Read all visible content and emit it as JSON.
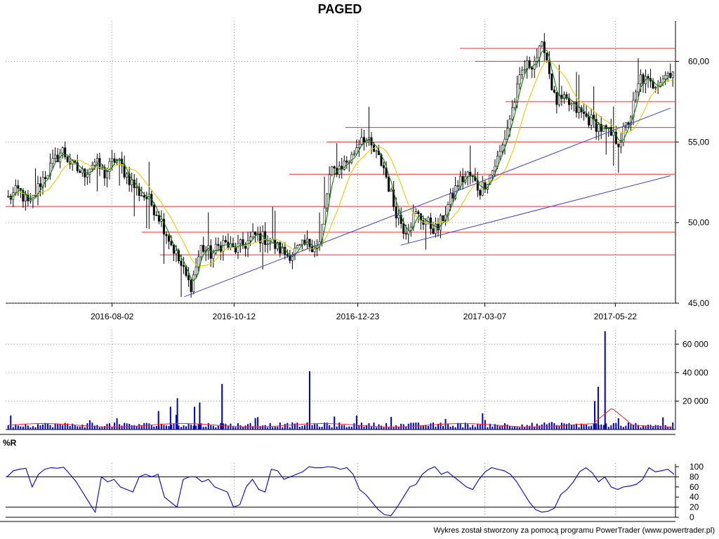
{
  "chart_data": [
    {
      "type": "candlestick",
      "title": "PAGED",
      "x_ticks": [
        "2016-08-02",
        "2016-10-12",
        "2016-12-23",
        "2017-03-07",
        "2017-05-22"
      ],
      "y_ticks": [
        "45,00",
        "50,00",
        "55,00",
        "60,00"
      ],
      "ylim": [
        45,
        62.5
      ],
      "grid": true,
      "price_path": [
        51.5,
        52.0,
        51.0,
        52.5,
        53.5,
        54.5,
        53.5,
        53.0,
        53.8,
        53.0,
        54.0,
        53.0,
        52.0,
        51.5,
        50.5,
        49.0,
        47.5,
        46.0,
        48.5,
        48.0,
        48.8,
        48.3,
        48.6,
        49.2,
        49.0,
        48.5,
        48.0,
        48.3,
        48.7,
        48.5,
        53.0,
        53.5,
        54.0,
        55.5,
        54.5,
        53.5,
        51.0,
        49.5,
        50.5,
        50.0,
        49.5,
        51.0,
        52.5,
        53.0,
        52.0,
        53.0,
        54.5,
        57.0,
        59.5,
        60.0,
        61.0,
        57.5,
        57.5,
        57.0,
        56.5,
        56.0,
        55.5,
        55.0,
        56.5,
        59.0,
        58.5,
        59.0,
        59.5
      ],
      "horizontal_levels": [
        60.8,
        60.0,
        57.5,
        55.9,
        55.0,
        53.0,
        51.0,
        49.4,
        48.0
      ],
      "trend_lines": [
        {
          "from": [
            "2016-09-13",
            45.4
          ],
          "to": [
            "2017-06-23",
            57.1
          ]
        },
        {
          "from": [
            "2017-01-17",
            48.6
          ],
          "to": [
            "2017-06-23",
            52.9
          ]
        }
      ],
      "colors": {
        "up": "#000000",
        "down": "#000000",
        "ma_short": "#008000",
        "ma_long": "#e0d000",
        "levels": "#e03030",
        "trend": "#4040d0"
      }
    },
    {
      "type": "bar",
      "name": "volume",
      "y_ticks": [
        "20 000",
        "40 000",
        "60 000"
      ],
      "ylim": [
        0,
        70000
      ],
      "spikes": [
        {
          "date": "2016-08-29",
          "value": 13000
        },
        {
          "date": "2016-09-05",
          "value": 16000
        },
        {
          "date": "2016-09-09",
          "value": 22000
        },
        {
          "date": "2016-09-19",
          "value": 16000
        },
        {
          "date": "2016-09-22",
          "value": 19000
        },
        {
          "date": "2016-10-05",
          "value": 32000
        },
        {
          "date": "2016-11-25",
          "value": 41000
        },
        {
          "date": "2017-05-10",
          "value": 20000
        },
        {
          "date": "2017-05-12",
          "value": 30000
        },
        {
          "date": "2017-05-16",
          "value": 69000
        }
      ],
      "colors": {
        "bars": "#0000c8",
        "avg": "#ff2020"
      }
    },
    {
      "type": "line",
      "label": "%R",
      "y_ticks": [
        "0",
        "20",
        "40",
        "60",
        "80",
        "100"
      ],
      "ylim": [
        0,
        100
      ],
      "levels": [
        20,
        80
      ],
      "values": [
        80,
        92,
        95,
        97,
        60,
        85,
        95,
        98,
        97,
        99,
        85,
        70,
        50,
        30,
        10,
        80,
        70,
        75,
        60,
        55,
        50,
        80,
        85,
        80,
        85,
        40,
        30,
        20,
        75,
        80,
        80,
        70,
        75,
        60,
        55,
        50,
        20,
        25,
        60,
        75,
        55,
        50,
        95,
        92,
        75,
        80,
        85,
        90,
        100,
        98,
        98,
        100,
        99,
        95,
        98,
        85,
        55,
        45,
        30,
        15,
        5,
        3,
        20,
        40,
        60,
        65,
        85,
        95,
        100,
        85,
        90,
        80,
        70,
        60,
        55,
        75,
        90,
        98,
        95,
        92,
        85,
        70,
        50,
        30,
        15,
        10,
        12,
        18,
        45,
        55,
        70,
        90,
        98,
        88,
        70,
        80,
        60,
        55,
        60,
        62,
        65,
        75,
        98,
        90,
        92,
        95,
        85
      ],
      "colors": {
        "line": "#0000e0"
      }
    }
  ],
  "oscillator_label": "%R",
  "footer": "Wykres został stworzony za pomocą programu PowerTrader (www.powertrader.pl)"
}
